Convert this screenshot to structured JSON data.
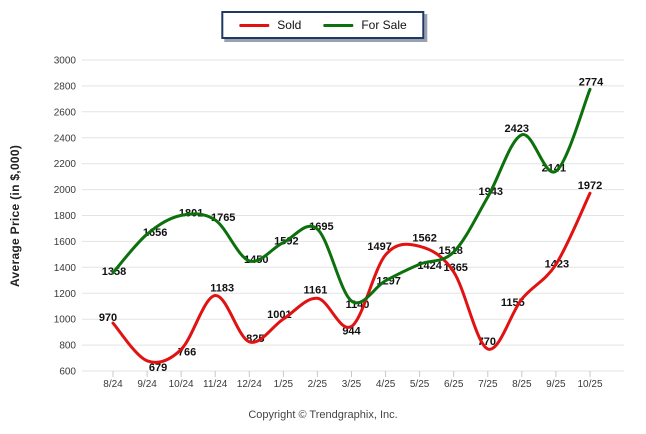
{
  "legend": {
    "items": [
      {
        "label": "Sold",
        "color": "#e11212"
      },
      {
        "label": "For Sale",
        "color": "#0c700c"
      }
    ]
  },
  "y_axis": {
    "title": "Average Price (in $,000)"
  },
  "footer": {
    "copyright": "Copyright © Trendgraphix, Inc."
  },
  "chart_data": {
    "type": "line",
    "title": "",
    "xlabel": "",
    "ylabel": "Average Price (in $,000)",
    "ylim": [
      600,
      3000
    ],
    "ytick_step": 200,
    "grid": true,
    "legend_position": "top-center",
    "categories": [
      "8/24",
      "9/24",
      "10/24",
      "11/24",
      "12/24",
      "1/25",
      "2/25",
      "3/25",
      "4/25",
      "5/25",
      "6/25",
      "7/25",
      "8/25",
      "9/25",
      "10/25"
    ],
    "series": [
      {
        "name": "Sold",
        "color": "#e11212",
        "values": [
          970,
          679,
          766,
          1183,
          825,
          1001,
          1161,
          944,
          1497,
          1562,
          1365,
          770,
          1155,
          1423,
          1972
        ],
        "label_offsets": [
          [
            -5,
            -6
          ],
          [
            11,
            6
          ],
          [
            6,
            2
          ],
          [
            7,
            -8
          ],
          [
            6,
            -4
          ],
          [
            -4,
            -5
          ],
          [
            -2,
            -9
          ],
          [
            0,
            4
          ],
          [
            -6,
            -9
          ],
          [
            5,
            -9
          ],
          [
            2,
            -5
          ],
          [
            -1,
            -8
          ],
          [
            -9,
            3
          ],
          [
            1,
            -1
          ],
          [
            0,
            -8
          ]
        ]
      },
      {
        "name": "For Sale",
        "color": "#0c700c",
        "values": [
          1358,
          1656,
          1801,
          1765,
          1450,
          1592,
          1695,
          1140,
          1297,
          1424,
          1518,
          1943,
          2423,
          2141,
          2774
        ],
        "label_offsets": [
          [
            1,
            -2
          ],
          [
            8,
            -2
          ],
          [
            10,
            -3
          ],
          [
            8,
            -3
          ],
          [
            7,
            -2
          ],
          [
            3,
            -2
          ],
          [
            4,
            -3
          ],
          [
            6,
            3
          ],
          [
            3,
            0
          ],
          [
            10,
            1
          ],
          [
            -3,
            -2
          ],
          [
            3,
            -6
          ],
          [
            -5,
            -7
          ],
          [
            -2,
            -4
          ],
          [
            1,
            -8
          ]
        ]
      }
    ]
  }
}
